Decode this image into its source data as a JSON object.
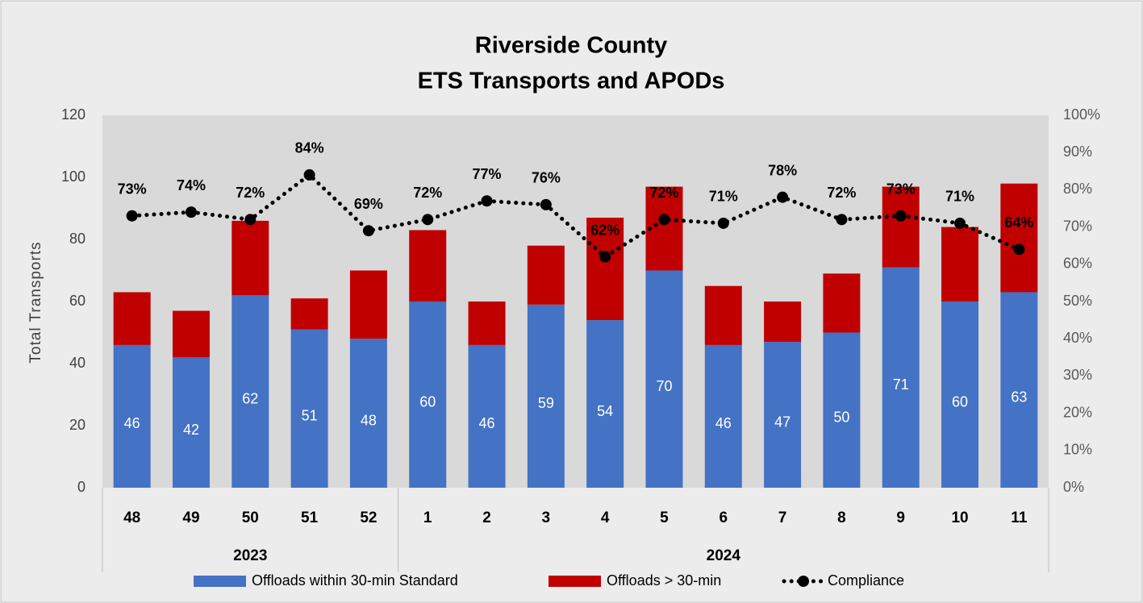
{
  "chart_data": {
    "type": "bar",
    "stacked": true,
    "title": "Riverside County",
    "subtitle": "ETS Transports and APODs",
    "ylabel": "Total Transports",
    "categories": [
      "48",
      "49",
      "50",
      "51",
      "52",
      "1",
      "2",
      "3",
      "4",
      "5",
      "6",
      "7",
      "8",
      "9",
      "10",
      "11"
    ],
    "groups": [
      {
        "name": "2023",
        "count": 5
      },
      {
        "name": "2024",
        "count": 11
      }
    ],
    "series": [
      {
        "name": "Offloads within 30-min Standard",
        "color": "#4472c4",
        "values": [
          46,
          42,
          62,
          51,
          48,
          60,
          46,
          59,
          54,
          70,
          46,
          47,
          50,
          71,
          60,
          63
        ]
      },
      {
        "name": "Offloads > 30-min",
        "color": "#c00000",
        "values": [
          17,
          15,
          24,
          10,
          22,
          23,
          14,
          19,
          33,
          27,
          19,
          13,
          19,
          26,
          24,
          35
        ]
      },
      {
        "name": "Compliance",
        "color": "#000000",
        "type": "line",
        "axis": "y2",
        "values": [
          73,
          74,
          72,
          84,
          69,
          72,
          77,
          76,
          62,
          72,
          71,
          78,
          72,
          73,
          71,
          64
        ],
        "value_labels": [
          "73%",
          "74%",
          "72%",
          "84%",
          "69%",
          "72%",
          "77%",
          "76%",
          "62%",
          "72%",
          "71%",
          "78%",
          "72%",
          "73%",
          "71%",
          "64%"
        ]
      }
    ],
    "ylim": [
      0,
      120
    ],
    "yticks": [
      0,
      20,
      40,
      60,
      80,
      100,
      120
    ],
    "y2lim": [
      0,
      100
    ],
    "y2ticks": [
      {
        "value": 0,
        "label": "0%"
      },
      {
        "value": 10,
        "label": "10%"
      },
      {
        "value": 20,
        "label": "20%"
      },
      {
        "value": 30,
        "label": "30%"
      },
      {
        "value": 40,
        "label": "40%"
      },
      {
        "value": 50,
        "label": "50%"
      },
      {
        "value": 60,
        "label": "60%"
      },
      {
        "value": 70,
        "label": "70%"
      },
      {
        "value": 80,
        "label": "80%"
      },
      {
        "value": 90,
        "label": "90%"
      },
      {
        "value": 100,
        "label": "100%"
      }
    ],
    "grid": false,
    "legend": "bottom"
  }
}
